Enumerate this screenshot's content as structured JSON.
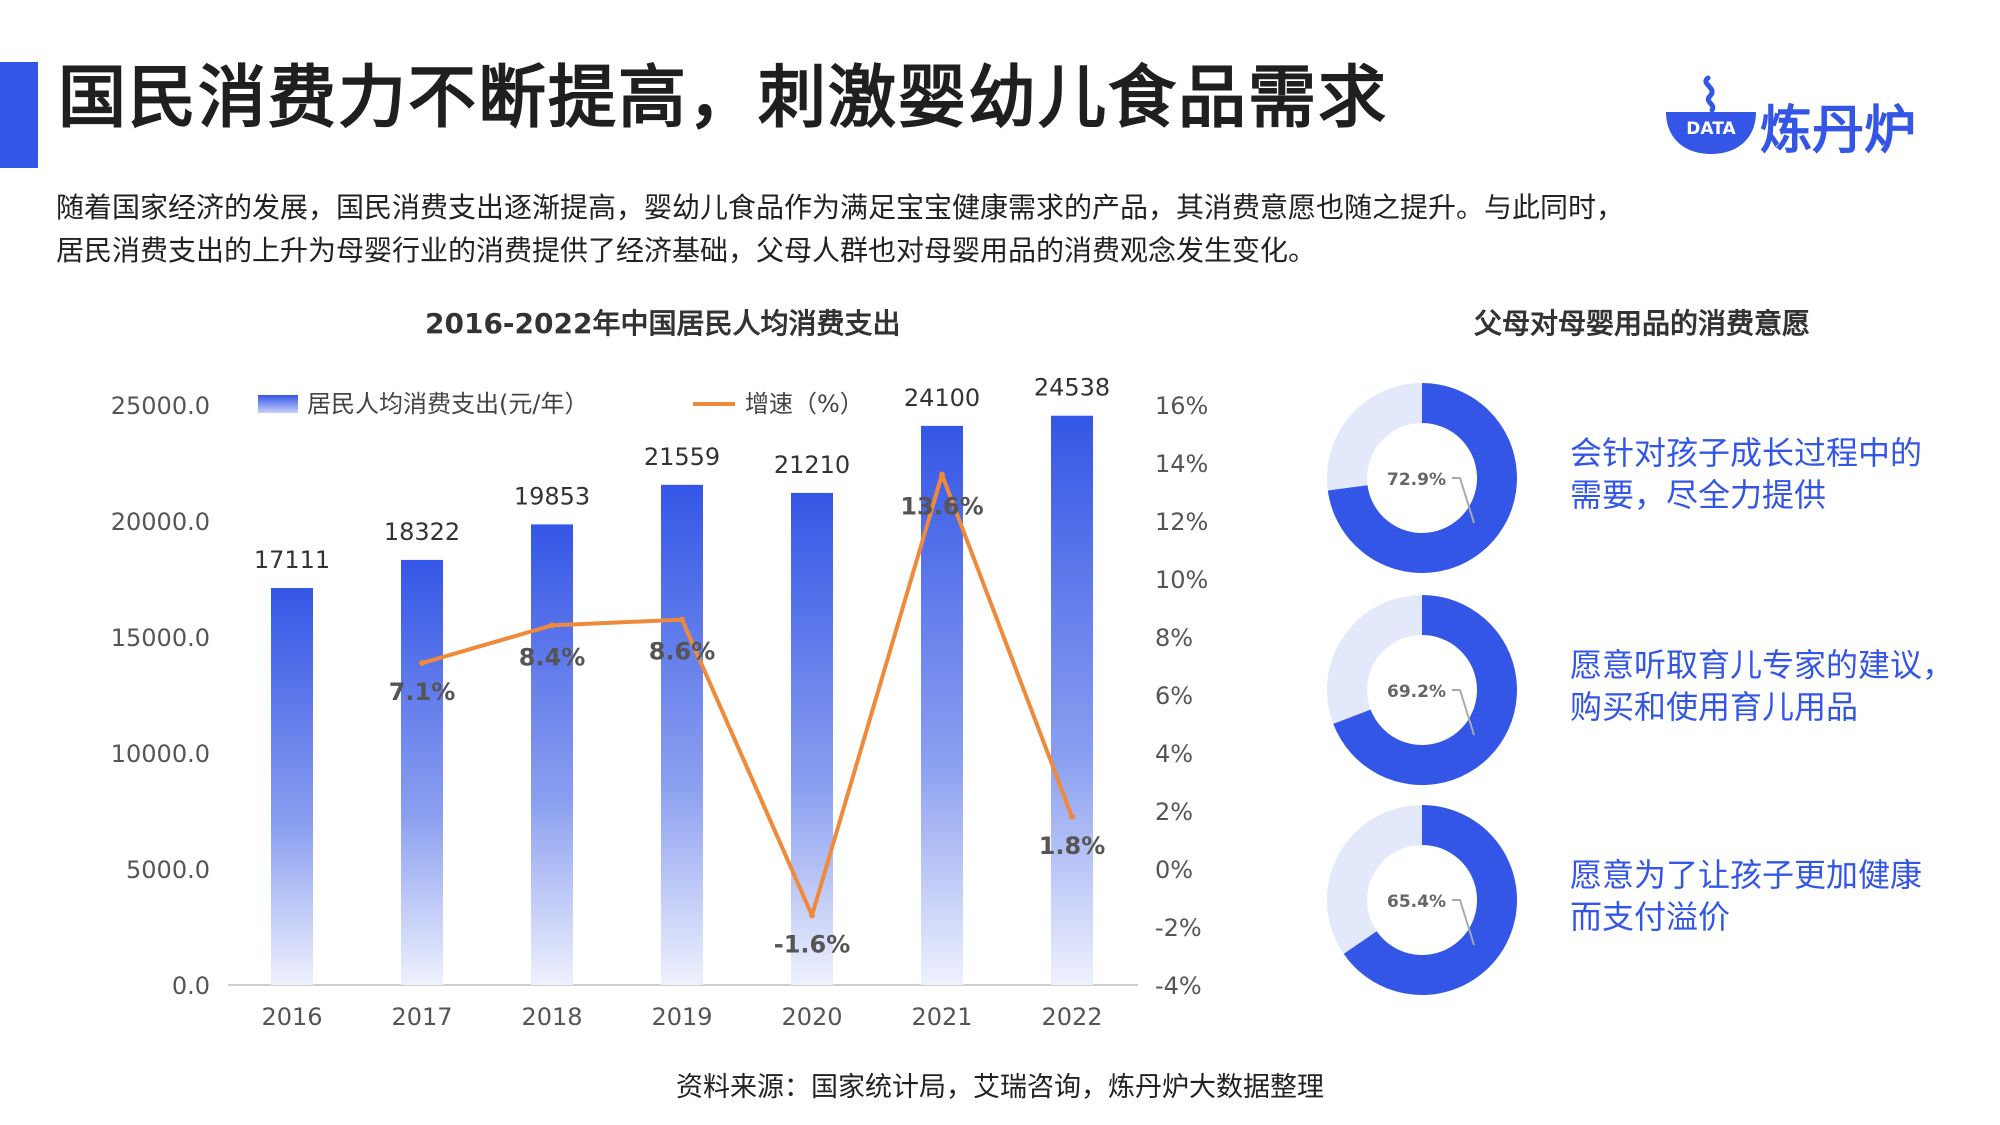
{
  "header": {
    "title": "国民消费力不断提高，刺激婴幼儿食品需求",
    "logo_text": "炼丹炉",
    "logo_badge": "DATA"
  },
  "intro": {
    "line1": "随着国家经济的发展，国民消费支出逐渐提高，婴幼儿食品作为满足宝宝健康需求的产品，其消费意愿也随之提升。与此同时，",
    "line2": "居民消费支出的上升为母婴行业的消费提供了经济基础，父母人群也对母婴用品的消费观念发生变化。"
  },
  "colors": {
    "accent": "#3456e6",
    "bar_top": "#3456e6",
    "bar_bottom": "#eef1fd",
    "line": "#ef8a3a",
    "donut_rest": "#e3e8fb"
  },
  "chart_data": [
    {
      "type": "bar",
      "title": "2016-2022年中国居民人均消费支出",
      "categories": [
        "2016",
        "2017",
        "2018",
        "2019",
        "2020",
        "2021",
        "2022"
      ],
      "series": [
        {
          "name": "居民人均消费支出(元/年）",
          "type": "bar",
          "axis": "left",
          "values": [
            17111,
            18322,
            19853,
            21559,
            21210,
            24100,
            24538
          ],
          "labels": [
            "17111",
            "18322",
            "19853",
            "21559",
            "21210",
            "24100",
            "24538"
          ]
        },
        {
          "name": "增速（%）",
          "type": "line",
          "axis": "right",
          "values": [
            null,
            7.1,
            8.4,
            8.6,
            -1.6,
            13.6,
            1.8
          ],
          "labels": [
            "",
            "7.1%",
            "8.4%",
            "8.6%",
            "-1.6%",
            "13.6%",
            "1.8%"
          ]
        }
      ],
      "yleft": {
        "lim": [
          0,
          25000
        ],
        "ticks": [
          "0.0",
          "5000.0",
          "10000.0",
          "15000.0",
          "20000.0",
          "25000.0"
        ]
      },
      "yright": {
        "lim": [
          -4,
          16
        ],
        "ticks": [
          "-4%",
          "-2%",
          "0%",
          "2%",
          "4%",
          "6%",
          "8%",
          "10%",
          "12%",
          "14%",
          "16%"
        ]
      },
      "legend": "top",
      "grid": false
    },
    {
      "type": "pie",
      "title": "父母对母婴用品的消费意愿",
      "items": [
        {
          "value": 72.9,
          "label": "72.9%",
          "text1": "会针对孩子成长过程中的",
          "text2": "需要，尽全力提供"
        },
        {
          "value": 69.2,
          "label": "69.2%",
          "text1": "愿意听取育儿专家的建议，",
          "text2": "购买和使用育儿用品"
        },
        {
          "value": 65.4,
          "label": "65.4%",
          "text1": "愿意为了让孩子更加健康",
          "text2": "而支付溢价"
        }
      ]
    }
  ],
  "source": "资料来源：国家统计局，艾瑞咨询，炼丹炉大数据整理"
}
